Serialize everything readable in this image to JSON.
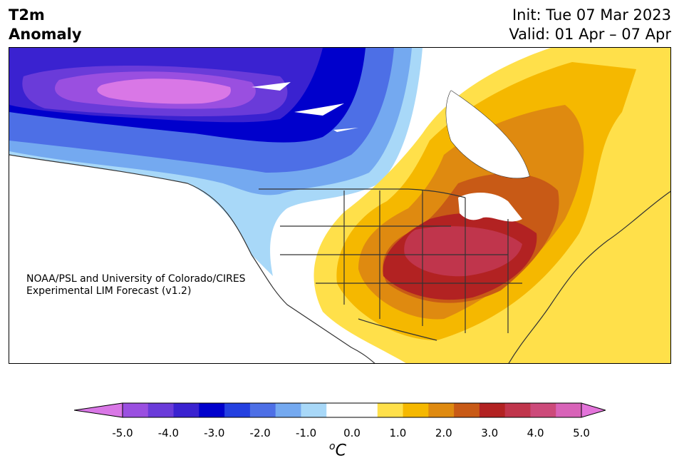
{
  "title": {
    "left_line1": "T2m",
    "left_line2": "Anomaly",
    "init": "Init: Tue 07 Mar 2023",
    "valid": "Valid: 01 Apr – 07 Apr"
  },
  "credit": {
    "line1": "NOAA/PSL and University of Colorado/CIRES",
    "line2": "Experimental LIM Forecast (v1.2)"
  },
  "colorbar": {
    "unit_base": "C",
    "unit_sup": "o",
    "ticks": [
      "-5.0",
      "-4.0",
      "-3.0",
      "-2.0",
      "-1.0",
      "0.0",
      "1.0",
      "2.0",
      "3.0",
      "4.0",
      "5.0"
    ],
    "colors": [
      "#9a4fe0",
      "#6a3bd9",
      "#3a22d0",
      "#0000cc",
      "#2440e0",
      "#4d6fe6",
      "#74a9f0",
      "#a8d8f8",
      "#ffffff",
      "#ffffff",
      "#ffe04a",
      "#f5b800",
      "#df8a10",
      "#c85a16",
      "#b22222",
      "#c0354c",
      "#cc4a7a",
      "#d863b8"
    ],
    "min_color": "#d977e6",
    "max_color": "#e374da"
  }
}
